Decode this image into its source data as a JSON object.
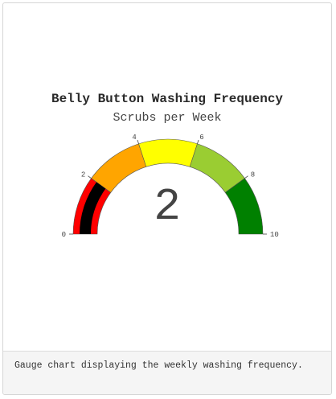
{
  "chart_data": {
    "type": "gauge",
    "title": "Belly Button Washing Frequency",
    "subtitle": "Scrubs per Week",
    "value": 2,
    "value_label": "2",
    "range": [
      0,
      10
    ],
    "ticks": [
      0,
      2,
      4,
      6,
      8,
      10
    ],
    "tick_labels": [
      "0",
      "2",
      "4",
      "6",
      "8",
      "10"
    ],
    "bands": [
      {
        "from": 0,
        "to": 2,
        "color": "#ff0000"
      },
      {
        "from": 2,
        "to": 4,
        "color": "#ffa500"
      },
      {
        "from": 4,
        "to": 6,
        "color": "#ffff00"
      },
      {
        "from": 6,
        "to": 8,
        "color": "#9acd32"
      },
      {
        "from": 8,
        "to": 10,
        "color": "#008000"
      }
    ],
    "bar_color": "#000000"
  },
  "caption": "Gauge chart displaying the weekly washing frequency."
}
